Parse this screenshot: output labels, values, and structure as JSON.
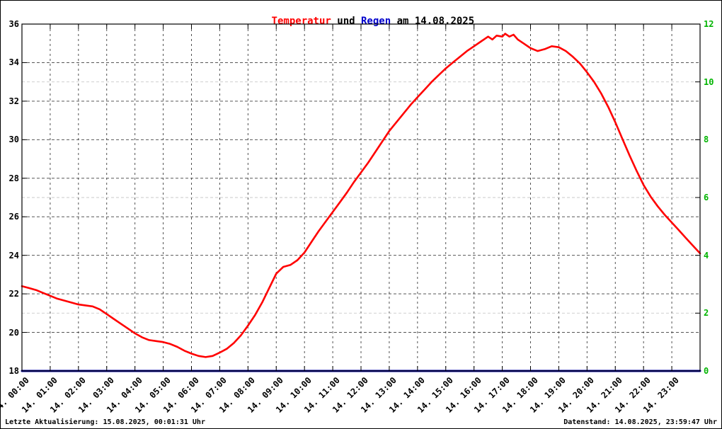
{
  "title": {
    "temp": "Temperatur",
    "mid": " und ",
    "rain": "Regen",
    "suffix": " am 14.08.2025"
  },
  "footer": {
    "left": "Letzte Aktualisierung: 15.08.2025, 00:01:31 Uhr",
    "right": "Datenstand: 14.08.2025, 23:59:47 Uhr"
  },
  "colors": {
    "temp_line": "#ff0000",
    "rain_line": "#0000a0",
    "title_temp": "#ff0000",
    "title_rain": "#0000cc",
    "right_axis_text": "#00b400",
    "grid_major": "#3f3f3f",
    "grid_y2": "#c8c8c8",
    "axis_border": "#000000"
  },
  "chart_data": {
    "type": "line",
    "title": "Temperatur und Regen am 14.08.2025",
    "grid": true,
    "x_range": [
      0,
      24
    ],
    "x_ticks": [
      "14. 00:00",
      "14. 01:00",
      "14. 02:00",
      "14. 03:00",
      "14. 04:00",
      "14. 05:00",
      "14. 06:00",
      "14. 07:00",
      "14. 08:00",
      "14. 09:00",
      "14. 10:00",
      "14. 11:00",
      "14. 12:00",
      "14. 13:00",
      "14. 14:00",
      "14. 15:00",
      "14. 16:00",
      "14. 17:00",
      "14. 18:00",
      "14. 19:00",
      "14. 20:00",
      "14. 21:00",
      "14. 22:00",
      "14. 23:00"
    ],
    "y_left": {
      "range": [
        18,
        36
      ],
      "ticks": [
        18,
        20,
        22,
        24,
        26,
        28,
        30,
        32,
        34,
        36
      ]
    },
    "y_right": {
      "range": [
        0,
        12
      ],
      "ticks": [
        0,
        2,
        4,
        6,
        8,
        10,
        12
      ]
    },
    "series": [
      {
        "name": "Temperatur",
        "axis": "left",
        "color": "#ff0000",
        "width": 2.6,
        "points": [
          [
            0.0,
            22.4
          ],
          [
            0.25,
            22.3
          ],
          [
            0.5,
            22.2
          ],
          [
            0.75,
            22.05
          ],
          [
            1.0,
            21.9
          ],
          [
            1.25,
            21.75
          ],
          [
            1.5,
            21.65
          ],
          [
            1.75,
            21.55
          ],
          [
            2.0,
            21.45
          ],
          [
            2.25,
            21.4
          ],
          [
            2.5,
            21.35
          ],
          [
            2.75,
            21.2
          ],
          [
            3.0,
            20.95
          ],
          [
            3.25,
            20.7
          ],
          [
            3.5,
            20.45
          ],
          [
            3.75,
            20.2
          ],
          [
            4.0,
            19.95
          ],
          [
            4.25,
            19.75
          ],
          [
            4.5,
            19.6
          ],
          [
            4.75,
            19.55
          ],
          [
            5.0,
            19.5
          ],
          [
            5.25,
            19.4
          ],
          [
            5.5,
            19.25
          ],
          [
            5.75,
            19.05
          ],
          [
            6.0,
            18.9
          ],
          [
            6.25,
            18.78
          ],
          [
            6.5,
            18.72
          ],
          [
            6.75,
            18.78
          ],
          [
            7.0,
            18.95
          ],
          [
            7.25,
            19.15
          ],
          [
            7.5,
            19.45
          ],
          [
            7.75,
            19.85
          ],
          [
            8.0,
            20.35
          ],
          [
            8.25,
            20.9
          ],
          [
            8.5,
            21.55
          ],
          [
            8.75,
            22.3
          ],
          [
            9.0,
            23.05
          ],
          [
            9.25,
            23.4
          ],
          [
            9.5,
            23.5
          ],
          [
            9.75,
            23.75
          ],
          [
            10.0,
            24.15
          ],
          [
            10.25,
            24.7
          ],
          [
            10.5,
            25.25
          ],
          [
            10.75,
            25.75
          ],
          [
            11.0,
            26.25
          ],
          [
            11.25,
            26.75
          ],
          [
            11.5,
            27.25
          ],
          [
            11.75,
            27.8
          ],
          [
            12.0,
            28.3
          ],
          [
            12.25,
            28.8
          ],
          [
            12.5,
            29.35
          ],
          [
            12.75,
            29.9
          ],
          [
            13.0,
            30.45
          ],
          [
            13.25,
            30.9
          ],
          [
            13.5,
            31.35
          ],
          [
            13.75,
            31.8
          ],
          [
            14.0,
            32.2
          ],
          [
            14.25,
            32.6
          ],
          [
            14.5,
            33.0
          ],
          [
            14.75,
            33.35
          ],
          [
            15.0,
            33.7
          ],
          [
            15.25,
            34.0
          ],
          [
            15.5,
            34.3
          ],
          [
            15.75,
            34.6
          ],
          [
            16.0,
            34.85
          ],
          [
            16.25,
            35.1
          ],
          [
            16.4,
            35.25
          ],
          [
            16.5,
            35.35
          ],
          [
            16.65,
            35.2
          ],
          [
            16.8,
            35.4
          ],
          [
            17.0,
            35.35
          ],
          [
            17.1,
            35.5
          ],
          [
            17.25,
            35.35
          ],
          [
            17.4,
            35.45
          ],
          [
            17.55,
            35.2
          ],
          [
            17.75,
            35.0
          ],
          [
            18.0,
            34.75
          ],
          [
            18.25,
            34.6
          ],
          [
            18.5,
            34.7
          ],
          [
            18.75,
            34.85
          ],
          [
            19.0,
            34.8
          ],
          [
            19.25,
            34.6
          ],
          [
            19.5,
            34.3
          ],
          [
            19.75,
            33.95
          ],
          [
            20.0,
            33.5
          ],
          [
            20.25,
            33.0
          ],
          [
            20.5,
            32.4
          ],
          [
            20.75,
            31.7
          ],
          [
            21.0,
            30.9
          ],
          [
            21.25,
            30.05
          ],
          [
            21.5,
            29.2
          ],
          [
            21.75,
            28.4
          ],
          [
            22.0,
            27.65
          ],
          [
            22.25,
            27.05
          ],
          [
            22.5,
            26.55
          ],
          [
            22.75,
            26.1
          ],
          [
            23.0,
            25.7
          ],
          [
            23.25,
            25.3
          ],
          [
            23.5,
            24.9
          ],
          [
            23.75,
            24.5
          ],
          [
            24.0,
            24.1
          ]
        ]
      },
      {
        "name": "Regen",
        "axis": "right",
        "color": "#0000a0",
        "width": 3,
        "points": [
          [
            0,
            0
          ],
          [
            24,
            0
          ]
        ]
      }
    ]
  }
}
